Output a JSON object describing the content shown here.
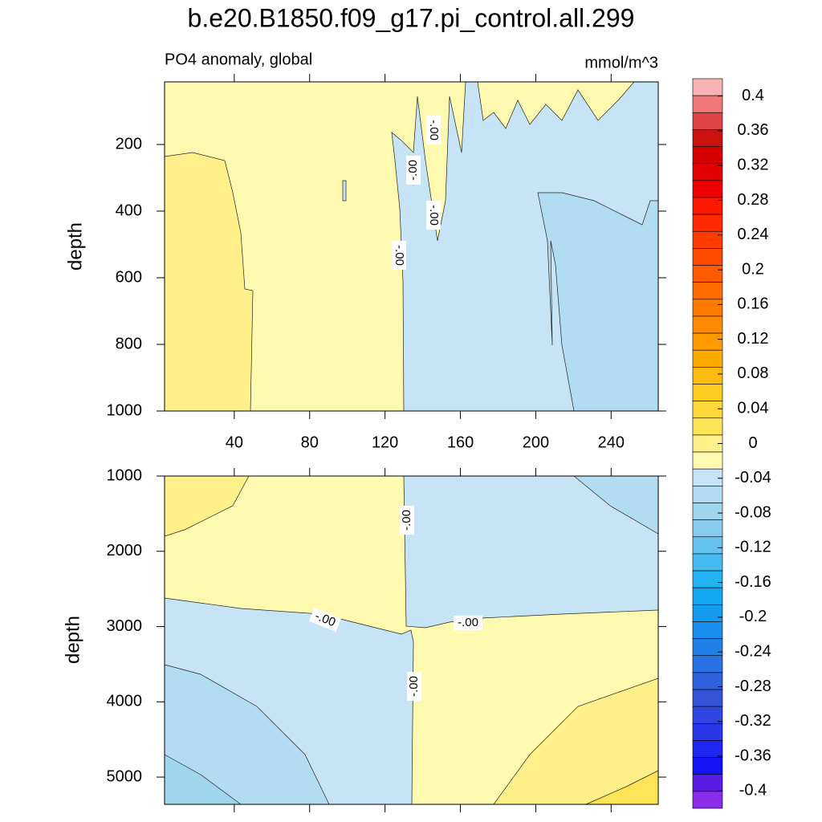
{
  "chart_data": [
    {
      "type": "contour",
      "title": "b.e20.B1850.f09_g17.pi_control.all.299",
      "subtitle_left": "PO4 anomaly, global",
      "subtitle_right": "mmol/m^3",
      "y_label": "depth",
      "xlim": [
        3,
        265
      ],
      "xticks": [
        40,
        80,
        120,
        160,
        200,
        240
      ],
      "ylim": [
        12,
        1000
      ],
      "yticks": [
        200,
        400,
        600,
        800,
        1000
      ],
      "contour_labels": [
        "-.00",
        "-.00",
        "-.00",
        "-.00"
      ],
      "colorbar": {
        "lim": [
          -0.42,
          0.42
        ],
        "ticks": [
          0.4,
          0.36,
          0.32,
          0.28,
          0.24,
          0.2,
          0.16,
          0.12,
          0.08,
          0.04,
          0,
          -0.04,
          -0.08,
          -0.12,
          -0.16,
          -0.2,
          -0.24,
          -0.28,
          -0.32,
          -0.36,
          -0.4
        ],
        "colors": [
          "#f7b3b3",
          "#ef7878",
          "#dd4444",
          "#cc1111",
          "#d60000",
          "#e20000",
          "#ee0000",
          "#ff1800",
          "#ff2a00",
          "#ff3c00",
          "#ff4c00",
          "#ff5a00",
          "#ff6a00",
          "#ff7a00",
          "#ff8a00",
          "#ff9a00",
          "#ffaa00",
          "#ffbb11",
          "#ffcc22",
          "#ffd83a",
          "#ffe458",
          "#fff08a",
          "#fffab0",
          "#c6e4f5",
          "#b2dcf2",
          "#a0d5ee",
          "#88cbee",
          "#66c3ef",
          "#44bbf0",
          "#22b4f2",
          "#12a8f0",
          "#149cee",
          "#1a8eec",
          "#2180e8",
          "#2872e2",
          "#2f62dc",
          "#3354d8",
          "#3046e0",
          "#2838e8",
          "#1f26f0",
          "#1512f4",
          "#5a1ce2",
          "#8a2ee8"
        ]
      }
    },
    {
      "type": "contour",
      "y_label": "depth",
      "xlim": [
        3,
        265
      ],
      "xticks": [
        40,
        80,
        120,
        160,
        200,
        240
      ],
      "ylim": [
        1000,
        5362
      ],
      "yticks": [
        1000,
        2000,
        3000,
        4000,
        5000
      ],
      "contour_labels": [
        "-.00",
        "-.00",
        "-.00",
        "-.00"
      ]
    }
  ]
}
